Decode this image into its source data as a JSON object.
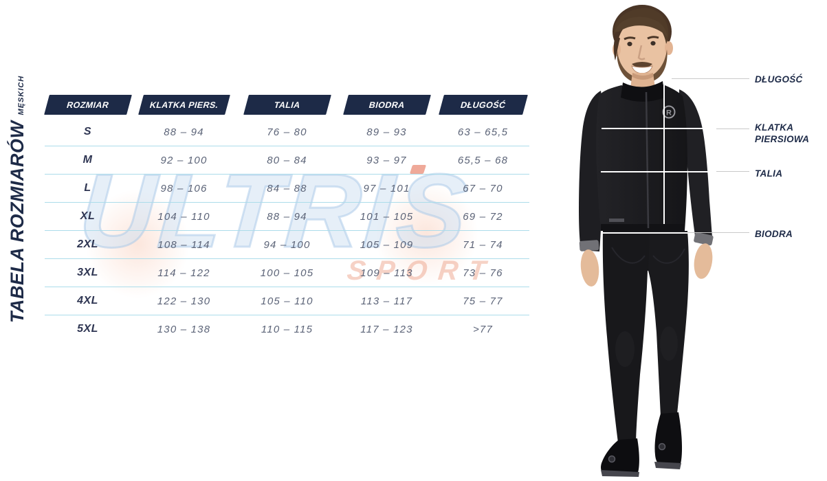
{
  "title": {
    "main": "TABELA ROZMIARÓW",
    "sub": "MĘSKICH"
  },
  "table": {
    "headers": [
      "ROZMIAR",
      "KLATKA PIERS.",
      "TALIA",
      "BIODRA",
      "DŁUGOŚĆ"
    ],
    "rows": [
      {
        "size": "S",
        "chest": "88 – 94",
        "waist": "76 – 80",
        "hips": "89 – 93",
        "length": "63 – 65,5"
      },
      {
        "size": "M",
        "chest": "92 – 100",
        "waist": "80 – 84",
        "hips": "93 – 97",
        "length": "65,5 – 68"
      },
      {
        "size": "L",
        "chest": "98 – 106",
        "waist": "84 – 88",
        "hips": "97 – 101",
        "length": "67 – 70"
      },
      {
        "size": "XL",
        "chest": "104 – 110",
        "waist": "88 – 94",
        "hips": "101 – 105",
        "length": "69 – 72"
      },
      {
        "size": "2XL",
        "chest": "108 – 114",
        "waist": "94 – 100",
        "hips": "105 – 109",
        "length": "71 – 74"
      },
      {
        "size": "3XL",
        "chest": "114 – 122",
        "waist": "100 – 105",
        "hips": "109 – 113",
        "length": "73 – 76"
      },
      {
        "size": "4XL",
        "chest": "122 – 130",
        "waist": "105 – 110",
        "hips": "113 – 117",
        "length": "75 – 77"
      },
      {
        "size": "5XL",
        "chest": "130 – 138",
        "waist": "110 – 115",
        "hips": "117 – 123",
        "length": ">77"
      }
    ]
  },
  "watermark": {
    "brand": "ULTRIS",
    "sub": "SPORT"
  },
  "figure": {
    "labels": {
      "length": "DŁUGOŚĆ",
      "chest": "KLATKA PIERSIOWA",
      "waist": "TALIA",
      "hips": "BIODRA"
    },
    "logo_letter": "R"
  },
  "colors": {
    "navy": "#1d2a47",
    "row_text": "#5b6377",
    "size_text": "#2e3552",
    "divider": "#abdcea",
    "connector": "#c9c9c9",
    "measure_line": "#ffffff",
    "watermark_blue": "#a8c8e7",
    "watermark_red": "#e99478"
  },
  "chart_data": {
    "type": "table",
    "title": "TABELA ROZMIARÓW MĘSKICH",
    "columns": [
      "ROZMIAR",
      "KLATKA PIERS.",
      "TALIA",
      "BIODRA",
      "DŁUGOŚĆ"
    ],
    "rows": [
      [
        "S",
        "88 – 94",
        "76 – 80",
        "89 – 93",
        "63 – 65,5"
      ],
      [
        "M",
        "92 – 100",
        "80 – 84",
        "93 – 97",
        "65,5 – 68"
      ],
      [
        "L",
        "98 – 106",
        "84 – 88",
        "97 – 101",
        "67 – 70"
      ],
      [
        "XL",
        "104 – 110",
        "88 – 94",
        "101 – 105",
        "69 – 72"
      ],
      [
        "2XL",
        "108 – 114",
        "94 – 100",
        "105 – 109",
        "71 – 74"
      ],
      [
        "3XL",
        "114 – 122",
        "100 – 105",
        "109 – 113",
        "73 – 76"
      ],
      [
        "4XL",
        "122 – 130",
        "105 – 110",
        "113 – 117",
        "75 – 77"
      ],
      [
        "5XL",
        "130 – 138",
        "110 – 115",
        "117 – 123",
        ">77"
      ]
    ],
    "annotations": [
      "DŁUGOŚĆ",
      "KLATKA PIERSIOWA",
      "TALIA",
      "BIODRA"
    ]
  }
}
